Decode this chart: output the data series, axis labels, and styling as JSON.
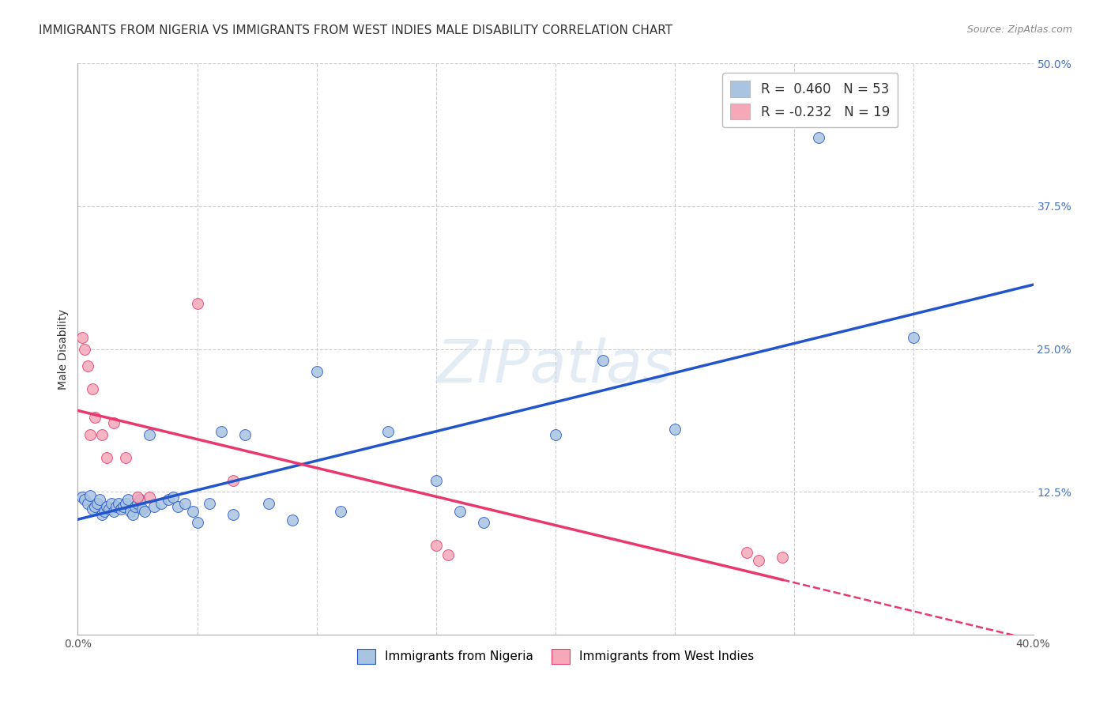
{
  "title": "IMMIGRANTS FROM NIGERIA VS IMMIGRANTS FROM WEST INDIES MALE DISABILITY CORRELATION CHART",
  "source": "Source: ZipAtlas.com",
  "ylabel": "Male Disability",
  "xlim": [
    0.0,
    0.4
  ],
  "ylim": [
    0.0,
    0.5
  ],
  "xticks": [
    0.0,
    0.05,
    0.1,
    0.15,
    0.2,
    0.25,
    0.3,
    0.35,
    0.4
  ],
  "yticks": [
    0.0,
    0.125,
    0.25,
    0.375,
    0.5
  ],
  "xticklabels": [
    "0.0%",
    "",
    "",
    "",
    "",
    "",
    "",
    "",
    "40.0%"
  ],
  "yticklabels": [
    "",
    "12.5%",
    "25.0%",
    "37.5%",
    "50.0%"
  ],
  "nigeria_R": 0.46,
  "nigeria_N": 53,
  "westindies_R": -0.232,
  "westindies_N": 19,
  "nigeria_color": "#a8c4e0",
  "westindies_color": "#f4a8b8",
  "nigeria_line_color": "#2255cc",
  "westindies_line_color": "#e8386d",
  "background_color": "#ffffff",
  "grid_color": "#cccccc",
  "watermark": "ZIPatlas",
  "nigeria_x": [
    0.002,
    0.003,
    0.004,
    0.005,
    0.006,
    0.007,
    0.008,
    0.009,
    0.01,
    0.011,
    0.012,
    0.013,
    0.014,
    0.015,
    0.016,
    0.017,
    0.018,
    0.019,
    0.02,
    0.021,
    0.022,
    0.023,
    0.024,
    0.025,
    0.026,
    0.027,
    0.028,
    0.03,
    0.032,
    0.035,
    0.038,
    0.04,
    0.042,
    0.045,
    0.048,
    0.05,
    0.055,
    0.06,
    0.065,
    0.07,
    0.08,
    0.09,
    0.1,
    0.11,
    0.13,
    0.15,
    0.16,
    0.17,
    0.2,
    0.22,
    0.25,
    0.31,
    0.35
  ],
  "nigeria_y": [
    0.12,
    0.118,
    0.115,
    0.122,
    0.11,
    0.112,
    0.115,
    0.118,
    0.105,
    0.108,
    0.112,
    0.11,
    0.115,
    0.108,
    0.112,
    0.115,
    0.11,
    0.112,
    0.115,
    0.118,
    0.108,
    0.105,
    0.112,
    0.115,
    0.118,
    0.11,
    0.108,
    0.175,
    0.112,
    0.115,
    0.118,
    0.12,
    0.112,
    0.115,
    0.108,
    0.098,
    0.115,
    0.178,
    0.105,
    0.175,
    0.115,
    0.1,
    0.23,
    0.108,
    0.178,
    0.135,
    0.108,
    0.098,
    0.175,
    0.24,
    0.18,
    0.435,
    0.26
  ],
  "westindies_x": [
    0.002,
    0.003,
    0.004,
    0.005,
    0.006,
    0.007,
    0.01,
    0.012,
    0.015,
    0.02,
    0.025,
    0.03,
    0.05,
    0.065,
    0.15,
    0.155,
    0.28,
    0.285,
    0.295
  ],
  "westindies_y": [
    0.26,
    0.25,
    0.235,
    0.175,
    0.215,
    0.19,
    0.175,
    0.155,
    0.185,
    0.155,
    0.12,
    0.12,
    0.29,
    0.135,
    0.078,
    0.07,
    0.072,
    0.065,
    0.068
  ],
  "title_fontsize": 11,
  "axis_label_fontsize": 10,
  "tick_fontsize": 10,
  "legend_fontsize": 12
}
